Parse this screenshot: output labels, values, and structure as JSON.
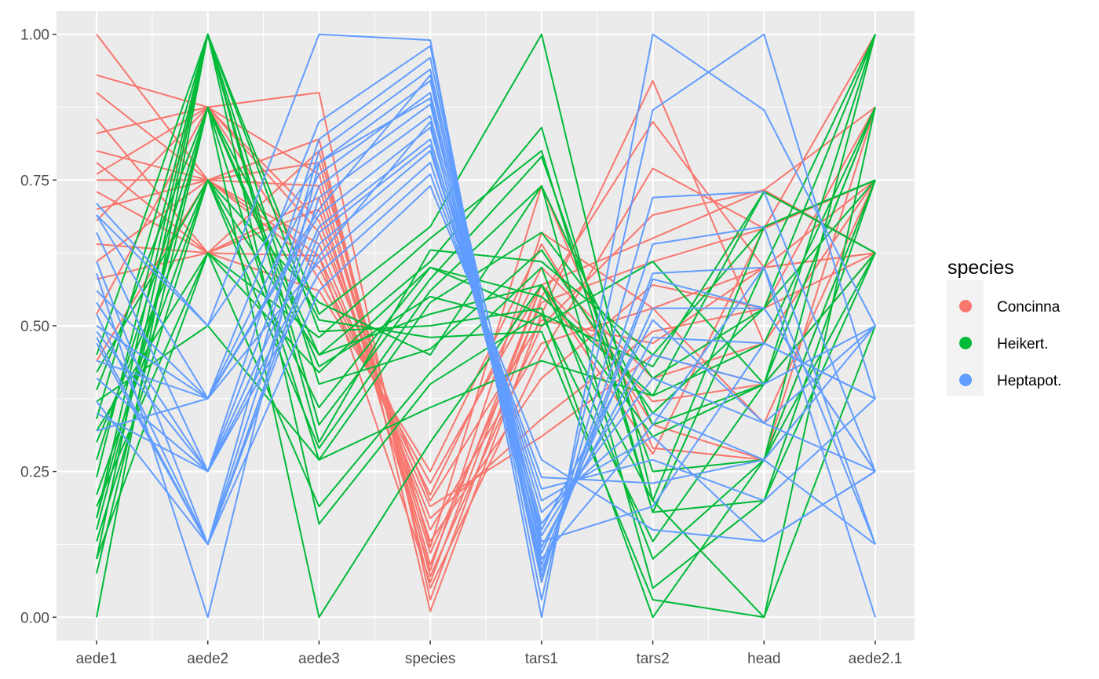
{
  "chart_data": {
    "type": "parallel-coordinates",
    "axes": [
      "aede1",
      "aede2",
      "aede3",
      "species",
      "tars1",
      "tars2",
      "head",
      "aede2.1"
    ],
    "ylim": [
      -0.04,
      1.04
    ],
    "y_ticks": [
      0.0,
      0.25,
      0.5,
      0.75,
      1.0
    ],
    "y_tick_labels": [
      "0.00",
      "0.25",
      "0.50",
      "0.75",
      "1.00"
    ],
    "grid": true,
    "legend": {
      "title": "species",
      "position": "right",
      "entries": [
        {
          "name": "Concinna",
          "color": "#F8766D"
        },
        {
          "name": "Heikert.",
          "color": "#00BA38"
        },
        {
          "name": "Heptapot.",
          "color": "#619CFF"
        }
      ]
    },
    "series": [
      {
        "name": "Concinna",
        "color": "#F8766D",
        "lines": [
          [
            1.0,
            0.75,
            0.82,
            0.01,
            0.52,
            0.92,
            0.47,
            0.75
          ],
          [
            0.93,
            0.875,
            0.9,
            0.03,
            0.55,
            0.85,
            0.6,
            0.625
          ],
          [
            0.9,
            0.75,
            0.82,
            0.05,
            0.45,
            0.77,
            0.667,
            0.75
          ],
          [
            0.855,
            0.625,
            0.8,
            0.07,
            0.5,
            0.69,
            0.733,
            0.875
          ],
          [
            0.83,
            0.875,
            0.76,
            0.09,
            0.57,
            0.65,
            0.733,
            0.625
          ],
          [
            0.8,
            0.75,
            0.74,
            0.11,
            0.54,
            0.61,
            0.667,
            0.75
          ],
          [
            0.78,
            0.625,
            0.7,
            0.13,
            0.41,
            0.57,
            0.53,
            0.625
          ],
          [
            0.76,
            0.875,
            0.68,
            0.15,
            0.47,
            0.53,
            0.6,
            0.75
          ],
          [
            0.75,
            0.75,
            0.64,
            0.17,
            0.34,
            0.49,
            0.53,
            0.875
          ],
          [
            0.73,
            0.625,
            0.62,
            0.19,
            0.31,
            0.45,
            0.4,
            0.625
          ],
          [
            0.7,
            0.75,
            0.6,
            0.21,
            0.6,
            0.41,
            0.47,
            0.75
          ],
          [
            0.68,
            0.875,
            0.58,
            0.23,
            0.57,
            0.37,
            0.4,
            0.625
          ],
          [
            0.64,
            0.625,
            0.56,
            0.25,
            0.64,
            0.33,
            0.27,
            0.75
          ],
          [
            0.61,
            0.75,
            0.78,
            0.12,
            0.74,
            0.29,
            0.27,
            0.875
          ],
          [
            0.58,
            0.625,
            0.72,
            0.08,
            0.66,
            0.53,
            0.333,
            0.75
          ],
          [
            0.52,
            0.875,
            0.66,
            0.2,
            0.51,
            0.47,
            0.6,
            0.625
          ],
          [
            0.44,
            0.75,
            0.62,
            0.06,
            0.57,
            0.28,
            0.667,
            1.0
          ]
        ]
      },
      {
        "name": "Heikert.",
        "color": "#00BA38",
        "lines": [
          [
            0.0,
            1.0,
            0.52,
            0.67,
            1.0,
            0.2,
            0.0,
            0.5
          ],
          [
            0.075,
            0.875,
            0.45,
            0.61,
            0.84,
            0.18,
            0.2,
            0.625
          ],
          [
            0.1,
            1.0,
            0.33,
            0.58,
            0.79,
            0.25,
            0.27,
            0.75
          ],
          [
            0.13,
            0.75,
            0.29,
            0.56,
            0.74,
            0.33,
            0.4,
            0.875
          ],
          [
            0.15,
            0.875,
            0.27,
            0.54,
            0.66,
            0.41,
            0.53,
            1.0
          ],
          [
            0.17,
            1.0,
            0.3,
            0.63,
            0.61,
            0.45,
            0.67,
            0.75
          ],
          [
            0.19,
            0.625,
            0.42,
            0.6,
            0.55,
            0.38,
            0.73,
            0.625
          ],
          [
            0.21,
            0.75,
            0.45,
            0.52,
            0.57,
            0.31,
            0.4,
            0.875
          ],
          [
            0.24,
            1.0,
            0.49,
            0.5,
            0.53,
            0.0,
            0.27,
            1.0
          ],
          [
            0.27,
            0.875,
            0.51,
            0.48,
            0.49,
            0.03,
            0.0,
            0.875
          ],
          [
            0.3,
            0.75,
            0.54,
            0.45,
            0.74,
            0.05,
            0.2,
            0.75
          ],
          [
            0.32,
            0.625,
            0.19,
            0.42,
            0.6,
            0.1,
            0.27,
            0.625
          ],
          [
            0.34,
            1.0,
            0.16,
            0.4,
            0.52,
            0.13,
            0.4,
            1.0
          ],
          [
            0.37,
            0.5,
            0.27,
            0.36,
            0.44,
            0.38,
            0.47,
            0.875
          ],
          [
            0.39,
            0.875,
            0.0,
            0.3,
            0.57,
            0.2,
            0.67,
            0.75
          ],
          [
            0.42,
            0.75,
            0.36,
            0.6,
            0.52,
            0.43,
            0.73,
            0.625
          ],
          [
            0.45,
            1.0,
            0.4,
            0.46,
            0.63,
            0.35,
            0.53,
            0.75
          ],
          [
            0.1,
            0.625,
            0.48,
            0.65,
            0.8,
            0.18,
            0.6,
            1.0
          ],
          [
            0.17,
            0.875,
            0.43,
            0.55,
            0.5,
            0.61,
            0.4,
            0.625
          ]
        ]
      },
      {
        "name": "Heptapot.",
        "color": "#619CFF",
        "lines": [
          [
            0.71,
            0.5,
            1.0,
            0.99,
            0.0,
            1.0,
            0.87,
            0.5
          ],
          [
            0.69,
            0.375,
            0.85,
            0.98,
            0.03,
            0.87,
            1.0,
            0.375
          ],
          [
            0.66,
            0.25,
            0.82,
            0.96,
            0.06,
            0.72,
            0.73,
            0.25
          ],
          [
            0.61,
            0.125,
            0.8,
            0.94,
            0.07,
            0.64,
            0.67,
            0.125
          ],
          [
            0.59,
            0.0,
            0.78,
            0.92,
            0.09,
            0.59,
            0.6,
            0.0
          ],
          [
            0.56,
            0.375,
            0.76,
            0.9,
            0.11,
            0.53,
            0.53,
            0.25
          ],
          [
            0.54,
            0.25,
            0.74,
            0.88,
            0.12,
            0.48,
            0.47,
            0.375
          ],
          [
            0.52,
            0.125,
            0.72,
            0.86,
            0.14,
            0.45,
            0.4,
            0.5
          ],
          [
            0.5,
            0.375,
            0.69,
            0.84,
            0.16,
            0.41,
            0.333,
            0.25
          ],
          [
            0.49,
            0.25,
            0.67,
            0.82,
            0.18,
            0.35,
            0.27,
            0.125
          ],
          [
            0.47,
            0.125,
            0.64,
            0.8,
            0.2,
            0.31,
            0.13,
            0.25
          ],
          [
            0.44,
            0.375,
            0.61,
            0.78,
            0.22,
            0.27,
            0.2,
            0.375
          ],
          [
            0.41,
            0.25,
            0.59,
            0.76,
            0.24,
            0.23,
            0.27,
            0.5
          ],
          [
            0.37,
            0.125,
            0.56,
            0.74,
            0.27,
            0.15,
            0.13,
            0.25
          ],
          [
            0.35,
            0.25,
            0.62,
            0.85,
            0.1,
            0.33,
            0.6,
            0.125
          ],
          [
            0.32,
            0.375,
            0.7,
            0.93,
            0.13,
            0.19,
            0.47,
            0.375
          ],
          [
            0.69,
            0.5,
            0.78,
            0.89,
            0.08,
            0.58,
            0.53,
            0.25
          ],
          [
            0.48,
            0.125,
            0.66,
            0.81,
            0.15,
            0.51,
            0.333,
            0.5
          ]
        ]
      }
    ]
  }
}
